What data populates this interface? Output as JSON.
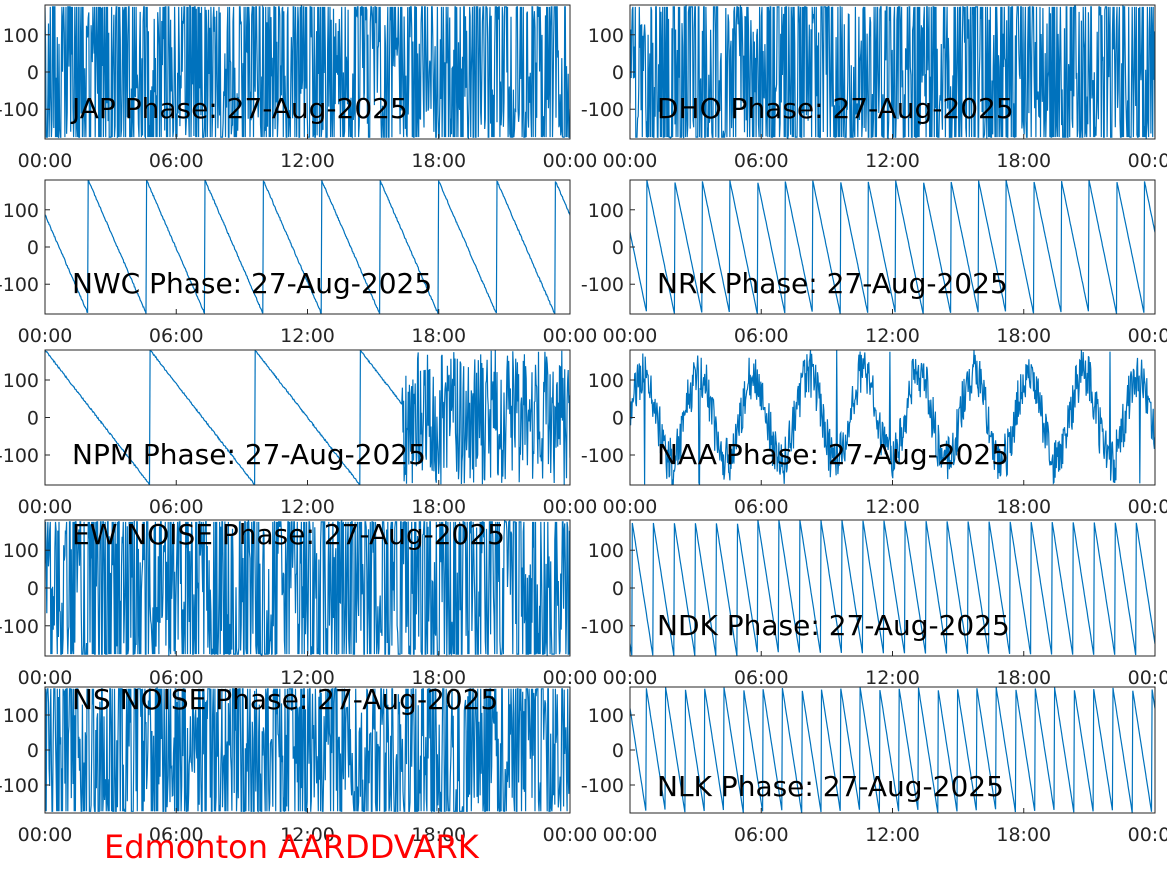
{
  "figure": {
    "station_label": "Edmonton AARDDVARK",
    "colors": {
      "line": "#0072bd",
      "station_label": "#ff0000",
      "axes": "#262626"
    }
  },
  "chart_data": [
    {
      "type": "line",
      "title": "JAP Phase: 27-Aug-2025",
      "xlabel": "",
      "ylabel": "",
      "ylim": [
        -180,
        180
      ],
      "yticks": [
        -100,
        0,
        100
      ],
      "ytick_labels": [
        "-100",
        "0",
        "100"
      ],
      "xticks": [
        "00:00",
        "06:00",
        "12:00",
        "18:00",
        "00:00"
      ],
      "pattern": "dense",
      "noise": 1.0,
      "grid": false
    },
    {
      "type": "line",
      "title": "DHO Phase: 27-Aug-2025",
      "xlabel": "",
      "ylabel": "",
      "ylim": [
        -180,
        180
      ],
      "yticks": [
        -100,
        0,
        100
      ],
      "ytick_labels": [
        "-100",
        "0",
        "100"
      ],
      "xticks": [
        "00:00",
        "06:00",
        "12:00",
        "18:00",
        "00:00"
      ],
      "pattern": "dense",
      "noise": 1.0,
      "grid": false
    },
    {
      "type": "line",
      "title": "NWC Phase: 27-Aug-2025",
      "xlabel": "",
      "ylabel": "",
      "ylim": [
        -180,
        180
      ],
      "yticks": [
        -100,
        0,
        100
      ],
      "ytick_labels": [
        "-100",
        "0",
        "100"
      ],
      "xticks": [
        "00:00",
        "06:00",
        "12:00",
        "18:00",
        "00:00"
      ],
      "pattern": "sawtooth",
      "cycles": 9,
      "noise": 0.15,
      "grid": false
    },
    {
      "type": "line",
      "title": "NRK Phase: 27-Aug-2025",
      "xlabel": "",
      "ylabel": "",
      "ylim": [
        -180,
        180
      ],
      "yticks": [
        -100,
        0,
        100
      ],
      "ytick_labels": [
        "-100",
        "0",
        "100"
      ],
      "xticks": [
        "00:00",
        "06:00",
        "12:00",
        "18:00",
        "00:00"
      ],
      "pattern": "sawtooth",
      "cycles": 19,
      "noise": 0.05,
      "grid": false
    },
    {
      "type": "line",
      "title": "NPM Phase: 27-Aug-2025",
      "xlabel": "",
      "ylabel": "",
      "ylim": [
        -180,
        180
      ],
      "yticks": [
        -100,
        0,
        100
      ],
      "ytick_labels": [
        "-100",
        "0",
        "100"
      ],
      "xticks": [
        "00:00",
        "06:00",
        "12:00",
        "18:00",
        "00:00"
      ],
      "pattern": "mixed",
      "cycles": 5,
      "noise": 0.2,
      "grid": false
    },
    {
      "type": "line",
      "title": "NAA Phase: 27-Aug-2025",
      "xlabel": "",
      "ylabel": "",
      "ylim": [
        -180,
        180
      ],
      "yticks": [
        -100,
        0,
        100
      ],
      "ytick_labels": [
        "-100",
        "0",
        "100"
      ],
      "xticks": [
        "00:00",
        "06:00",
        "12:00",
        "18:00",
        "00:00"
      ],
      "pattern": "dense",
      "noise": 0.6,
      "grid": false
    },
    {
      "type": "line",
      "title": "EW NOISE Phase: 27-Aug-2025",
      "xlabel": "",
      "ylabel": "",
      "ylim": [
        -180,
        180
      ],
      "yticks": [
        -100,
        0,
        100
      ],
      "ytick_labels": [
        "-100",
        "0",
        "100"
      ],
      "xticks": [
        "00:00",
        "06:00",
        "12:00",
        "18:00",
        "00:00"
      ],
      "pattern": "dense",
      "noise": 1.0,
      "grid": false
    },
    {
      "type": "line",
      "title": "NDK Phase: 27-Aug-2025",
      "xlabel": "",
      "ylabel": "",
      "ylim": [
        -180,
        180
      ],
      "yticks": [
        -100,
        0,
        100
      ],
      "ytick_labels": [
        "-100",
        "0",
        "100"
      ],
      "xticks": [
        "00:00",
        "06:00",
        "12:00",
        "18:00",
        "00:00"
      ],
      "pattern": "sawtooth",
      "cycles": 25,
      "noise": 0.03,
      "grid": false
    },
    {
      "type": "line",
      "title": "NS NOISE Phase: 27-Aug-2025",
      "xlabel": "",
      "ylabel": "",
      "ylim": [
        -180,
        180
      ],
      "yticks": [
        -100,
        0,
        100
      ],
      "ytick_labels": [
        "-100",
        "0",
        "100"
      ],
      "xticks": [
        "00:00",
        "06:00",
        "12:00",
        "18:00",
        "00:00"
      ],
      "pattern": "dense",
      "noise": 1.0,
      "grid": false
    },
    {
      "type": "line",
      "title": "NLK Phase: 27-Aug-2025",
      "xlabel": "",
      "ylabel": "",
      "ylim": [
        -180,
        180
      ],
      "yticks": [
        -100,
        0,
        100
      ],
      "ytick_labels": [
        "-100",
        "0",
        "100"
      ],
      "xticks": [
        "00:00",
        "06:00",
        "12:00",
        "18:00",
        "00:00"
      ],
      "pattern": "sawtooth",
      "cycles": 27,
      "noise": 0.03,
      "grid": false
    }
  ]
}
